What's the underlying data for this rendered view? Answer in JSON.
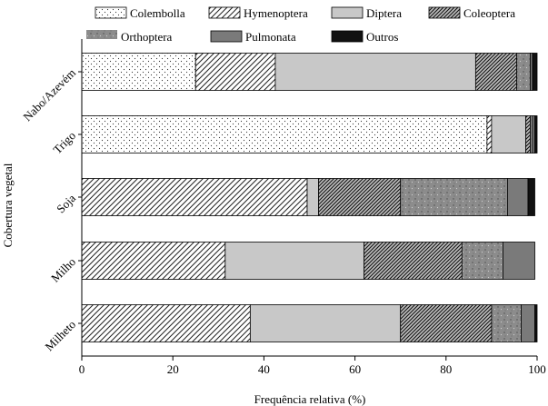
{
  "chart_data": {
    "type": "bar",
    "orientation": "horizontal",
    "stacked": true,
    "xlabel": "Frequência relativa (%)",
    "ylabel": "Cobertura vegetal",
    "xlim": [
      0,
      100
    ],
    "xticks": [
      "0",
      "20",
      "40",
      "60",
      "80",
      "100"
    ],
    "legend_position": "top",
    "grid": false,
    "categories": [
      "Nabo/Azevém",
      "Trigo",
      "Soja",
      "Milho",
      "Milheto"
    ],
    "series": [
      {
        "name": "Colembolla",
        "pattern": "dots",
        "values": [
          25,
          89,
          0,
          0,
          0
        ]
      },
      {
        "name": "Hymenoptera",
        "pattern": "diagonal-sparse",
        "values": [
          17.5,
          1,
          49.5,
          31.5,
          37
        ]
      },
      {
        "name": "Diptera",
        "pattern": "solid-light",
        "values": [
          44,
          7.5,
          2.5,
          30.5,
          33
        ]
      },
      {
        "name": "Coleoptera",
        "pattern": "diagonal-dense",
        "values": [
          9,
          1,
          18,
          21.5,
          20
        ]
      },
      {
        "name": "Orthoptera",
        "pattern": "speckled-gray",
        "values": [
          3,
          0.5,
          23.5,
          9,
          6.5
        ]
      },
      {
        "name": "Pulmonata",
        "pattern": "solid-gray",
        "values": [
          0.5,
          0.5,
          4.5,
          7,
          3
        ]
      },
      {
        "name": "Outros",
        "pattern": "solid-black",
        "values": [
          1,
          0.5,
          1.5,
          0,
          0.5
        ]
      }
    ]
  }
}
